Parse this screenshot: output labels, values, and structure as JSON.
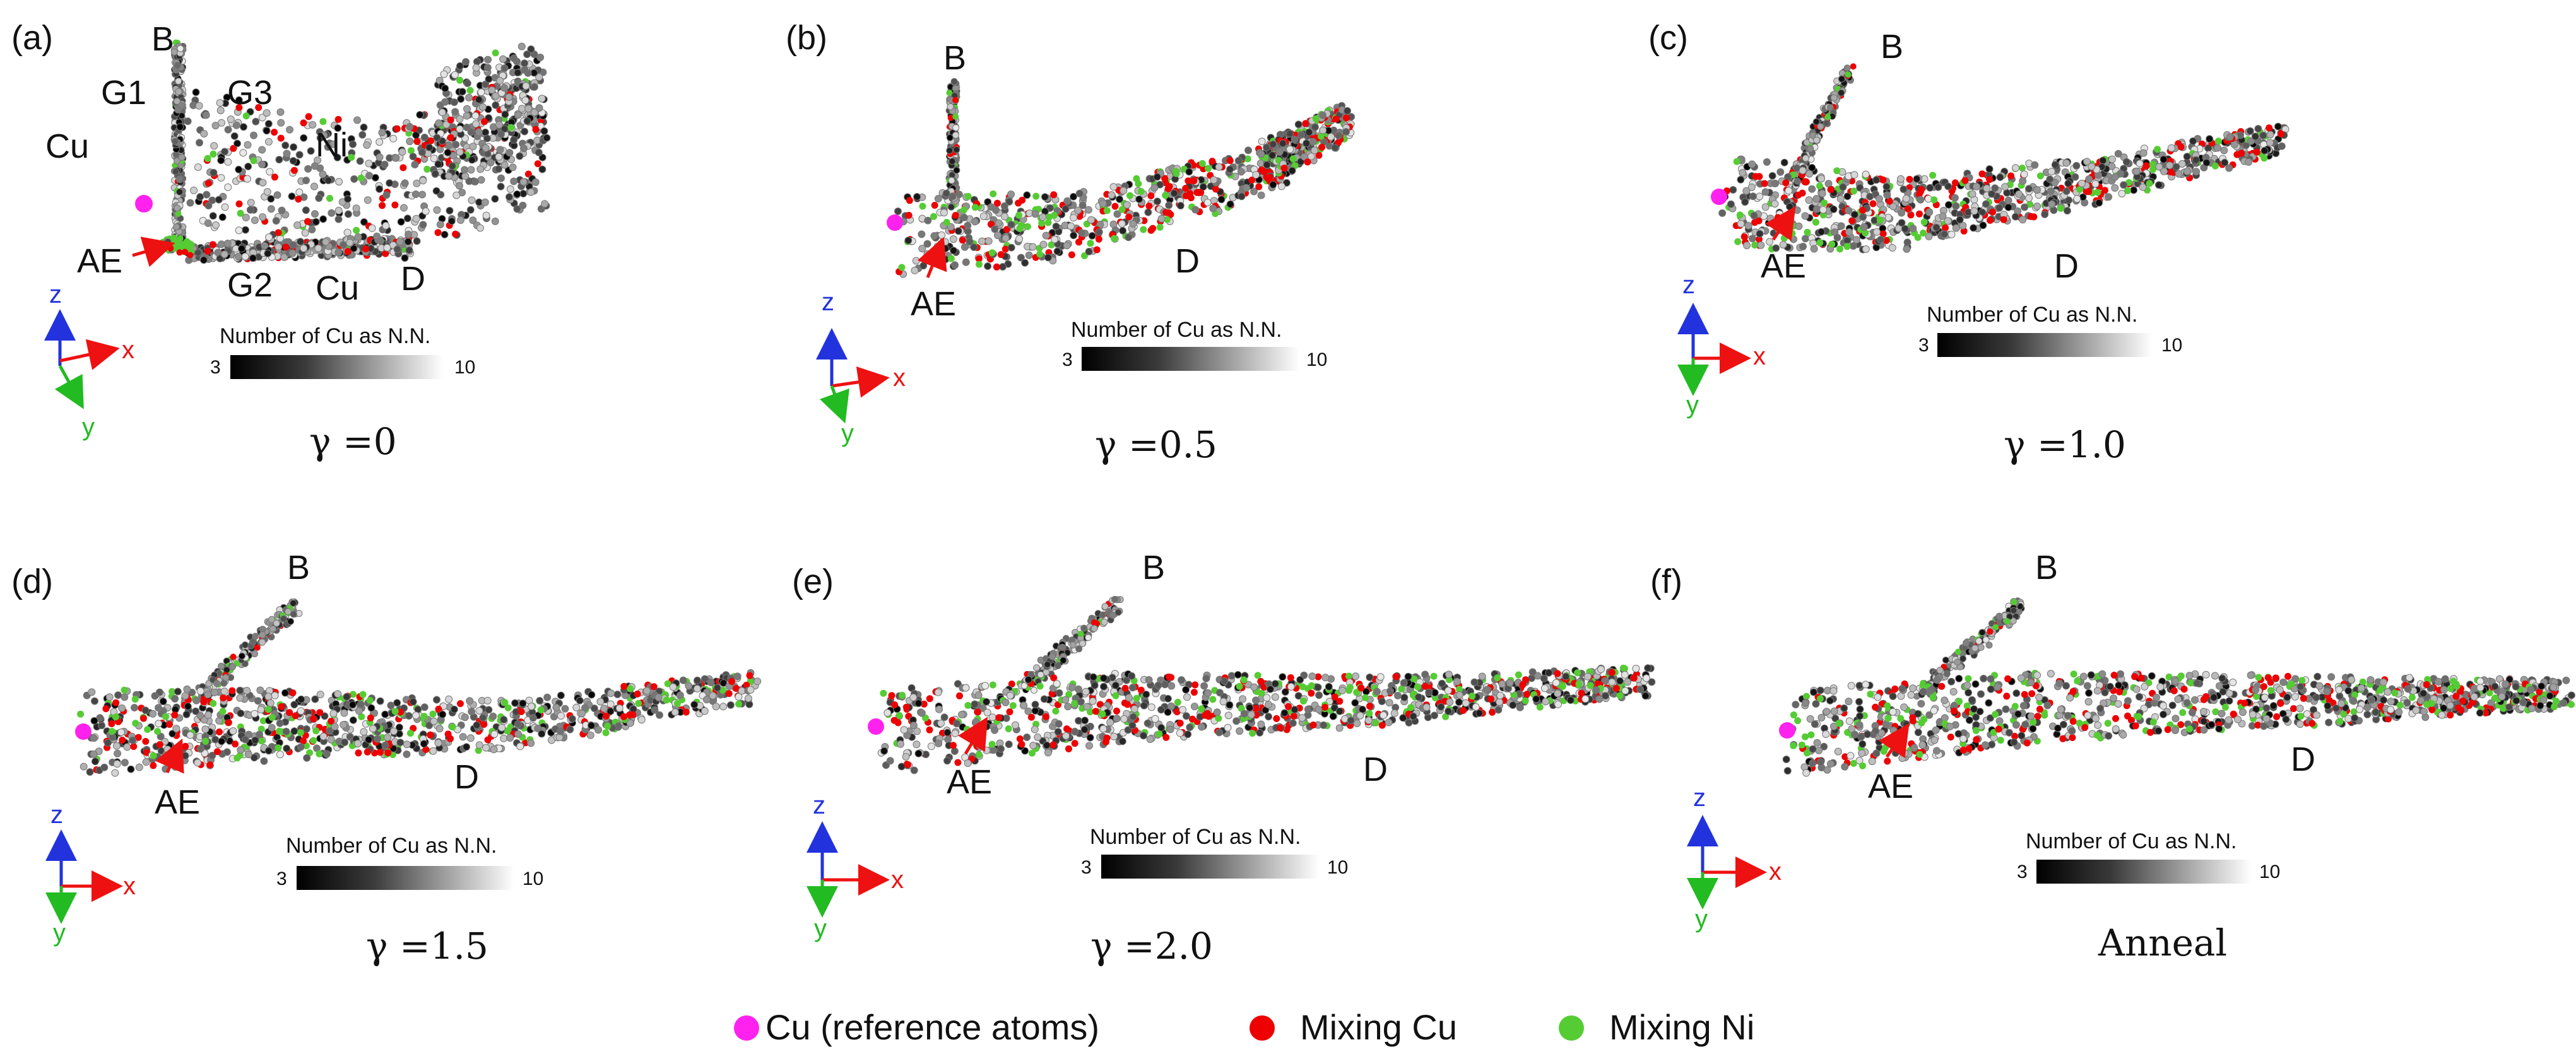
{
  "colors": {
    "reference": "#ff22ee",
    "mixing_cu": "#ee0000",
    "mixing_ni": "#55cc33",
    "axis_x": "#ee1111",
    "axis_y": "#22bb22",
    "axis_z": "#2233dd"
  },
  "axes": {
    "x": "x",
    "y": "y",
    "z": "z"
  },
  "colorbar": {
    "title": "Number of Cu as N.N.",
    "min": "3",
    "max": "10"
  },
  "panels": [
    {
      "id": "a",
      "tag": "(a)",
      "caption": "γ =0",
      "labels": {
        "B": "B",
        "AE": "AE",
        "D": "D",
        "G1": "G1",
        "G2": "G2",
        "G3": "G3",
        "Cu_left": "Cu",
        "Cu_bottom": "Cu",
        "Ni": "Ni"
      }
    },
    {
      "id": "b",
      "tag": "(b)",
      "caption": "γ =0.5",
      "labels": {
        "B": "B",
        "AE": "AE",
        "D": "D"
      }
    },
    {
      "id": "c",
      "tag": "(c)",
      "caption": "γ =1.0",
      "labels": {
        "B": "B",
        "AE": "AE",
        "D": "D"
      }
    },
    {
      "id": "d",
      "tag": "(d)",
      "caption": "γ =1.5",
      "labels": {
        "B": "B",
        "AE": "AE",
        "D": "D"
      }
    },
    {
      "id": "e",
      "tag": "(e)",
      "caption": "γ =2.0",
      "labels": {
        "B": "B",
        "AE": "AE",
        "D": "D"
      }
    },
    {
      "id": "f",
      "tag": "(f)",
      "caption": "Anneal",
      "labels": {
        "B": "B",
        "AE": "AE",
        "D": "D"
      }
    }
  ],
  "legend": [
    {
      "key": "reference",
      "label": "Cu (reference atoms)"
    },
    {
      "key": "mixing_cu",
      "label": "Mixing Cu"
    },
    {
      "key": "mixing_ni",
      "label": "Mixing Ni"
    }
  ]
}
